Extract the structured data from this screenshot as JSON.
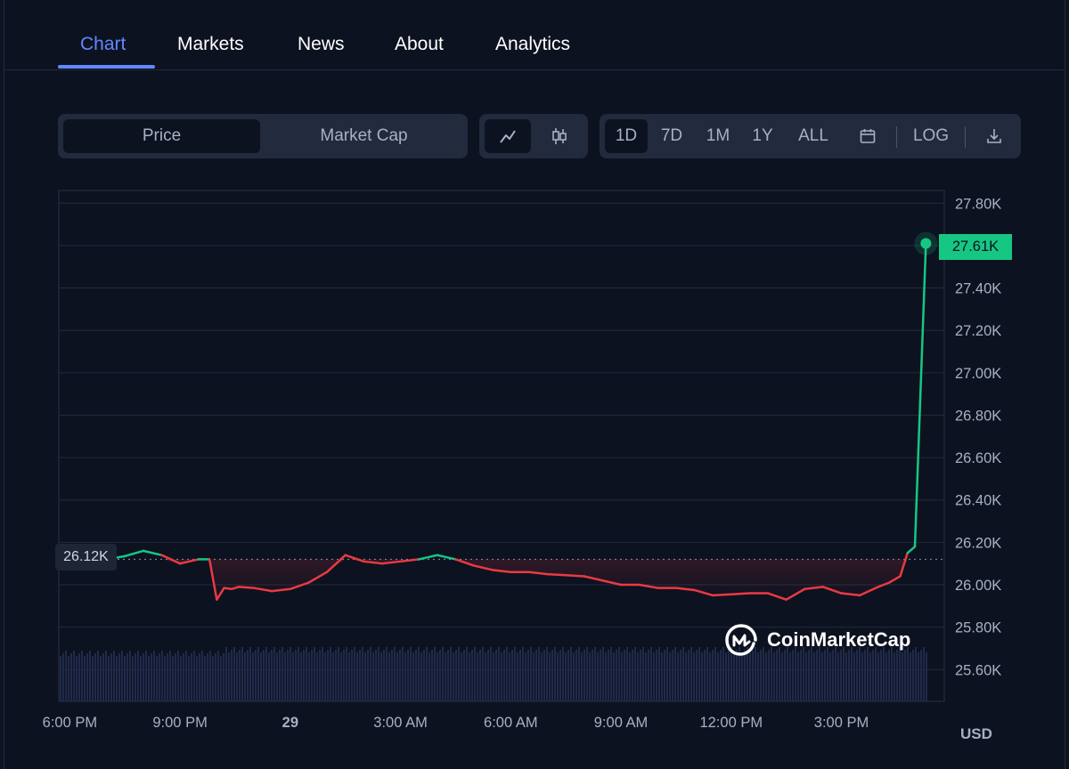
{
  "tabs": [
    {
      "label": "Chart",
      "active": true
    },
    {
      "label": "Markets",
      "active": false
    },
    {
      "label": "News",
      "active": false
    },
    {
      "label": "About",
      "active": false
    },
    {
      "label": "Analytics",
      "active": false
    }
  ],
  "toolbar": {
    "data_type": {
      "options": [
        "Price",
        "Market Cap"
      ],
      "selected": "Price"
    },
    "chart_style": {
      "options": [
        "line-chart-icon",
        "candlestick-icon"
      ],
      "selected": "line-chart-icon"
    },
    "ranges": [
      "1D",
      "7D",
      "1M",
      "1Y",
      "ALL"
    ],
    "selected_range": "1D",
    "calendar_icon": "calendar-icon",
    "log_label": "LOG",
    "download_icon": "download-icon"
  },
  "colors": {
    "up": "#16c784",
    "down": "#ea3943",
    "accent": "#6188ff",
    "background": "#0d1220"
  },
  "chart_data": {
    "type": "line",
    "currency_label": "USD",
    "reference_price": 26120,
    "reference_label": "26.12K",
    "current_price": 27610,
    "current_label": "27.61K",
    "y_ticks": [
      "27.80K",
      "27.60K",
      "27.40K",
      "27.20K",
      "27.00K",
      "26.80K",
      "26.60K",
      "26.40K",
      "26.20K",
      "26.00K",
      "25.80K",
      "25.60K"
    ],
    "ylim": [
      25450,
      27860
    ],
    "x_ticks": [
      "6:00 PM",
      "9:00 PM",
      "29",
      "3:00 AM",
      "6:00 AM",
      "9:00 AM",
      "12:00 PM",
      "3:00 PM"
    ],
    "x_tick_hours": [
      0,
      3,
      6,
      9,
      12,
      15,
      18,
      21
    ],
    "x_hours": [
      1.0,
      1.5,
      2.0,
      2.5,
      3.0,
      3.5,
      3.8,
      4.0,
      4.2,
      4.4,
      4.6,
      5.0,
      5.5,
      6.0,
      6.5,
      7.0,
      7.5,
      8.0,
      8.5,
      9.0,
      9.5,
      10.0,
      10.5,
      11.0,
      11.5,
      12.0,
      12.5,
      13.0,
      13.5,
      14.0,
      14.5,
      15.0,
      15.5,
      16.0,
      16.5,
      17.0,
      17.5,
      18.0,
      18.5,
      19.0,
      19.5,
      20.0,
      20.5,
      21.0,
      21.5,
      22.0,
      22.3,
      22.6,
      22.8,
      23.0,
      23.3
    ],
    "y_values": [
      26120,
      26135,
      26160,
      26140,
      26100,
      26120,
      26120,
      25930,
      25985,
      25980,
      25990,
      25985,
      25970,
      25980,
      26010,
      26060,
      26140,
      26110,
      26100,
      26110,
      26120,
      26140,
      26120,
      26090,
      26070,
      26060,
      26060,
      26050,
      26045,
      26040,
      26020,
      26000,
      26000,
      25985,
      25985,
      25975,
      25950,
      25955,
      25960,
      25960,
      25930,
      25980,
      25990,
      25960,
      25950,
      25990,
      26010,
      26040,
      26150,
      26180,
      27610
    ],
    "volume_note": "volume bars shown along bottom",
    "watermark": "CoinMarketCap"
  }
}
